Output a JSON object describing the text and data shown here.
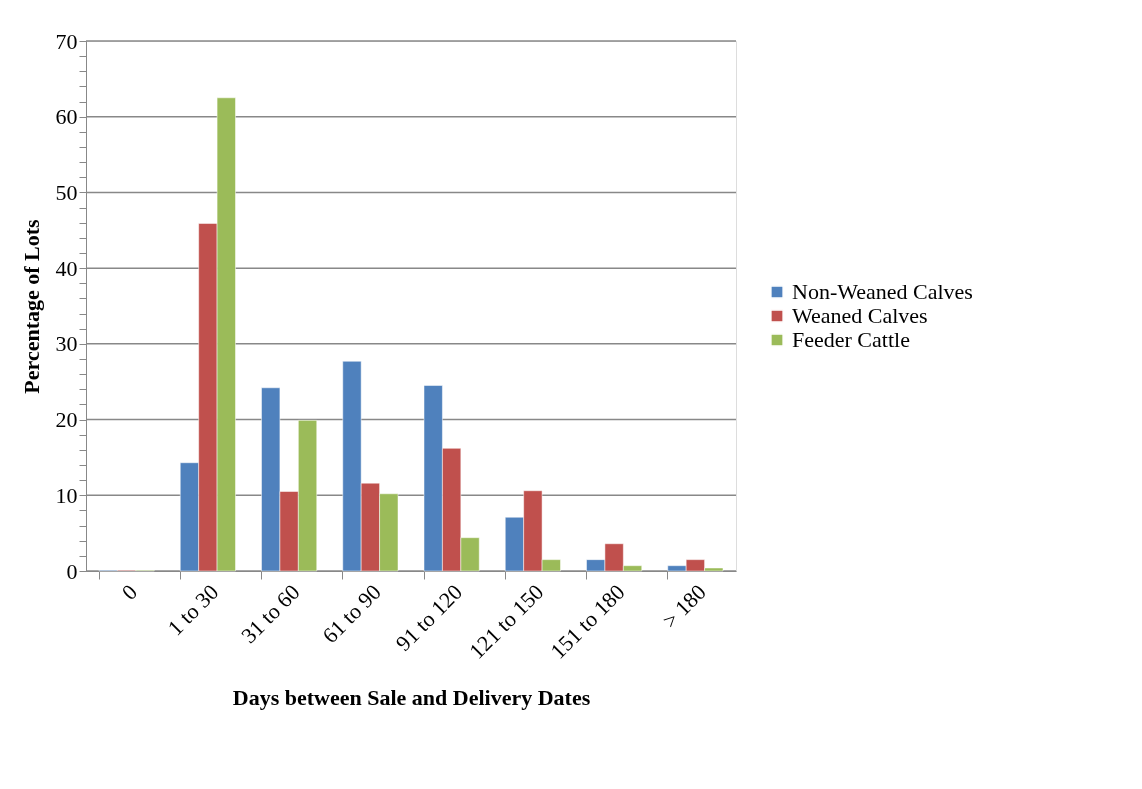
{
  "chart_data": {
    "type": "bar",
    "xlabel": "Days between Sale and Delivery Dates",
    "ylabel": "Percentage of Lots",
    "categories": [
      "0",
      "1 to 30",
      "31 to 60",
      "61 to 90",
      "91 to 120",
      "121 to 150",
      "151 to 180",
      "> 180"
    ],
    "series": [
      {
        "name": "Non-Weaned Calves",
        "color": "#4f81bd",
        "values": [
          0.1,
          14.3,
          24.2,
          27.7,
          24.5,
          7.1,
          1.5,
          0.7
        ]
      },
      {
        "name": "Weaned Calves",
        "color": "#c0504d",
        "values": [
          0.1,
          45.9,
          10.5,
          11.6,
          16.2,
          10.6,
          3.6,
          1.5
        ]
      },
      {
        "name": "Feeder Cattle",
        "color": "#9bbb59",
        "values": [
          0.1,
          62.5,
          19.9,
          10.2,
          4.4,
          1.5,
          0.7,
          0.4
        ]
      }
    ],
    "ylim": [
      0,
      70
    ],
    "yticks": [
      0,
      {
        "value": 2,
        "label": null
      },
      {
        "value": 4,
        "label": null
      },
      {
        "value": 6,
        "label": null
      },
      {
        "value": 8,
        "label": null
      },
      10,
      {
        "value": 12,
        "label": null
      },
      {
        "value": 14,
        "label": null
      },
      {
        "value": 16,
        "label": null
      },
      {
        "value": 18,
        "label": null
      },
      20,
      {
        "value": 22,
        "label": null
      },
      {
        "value": 24,
        "label": null
      },
      {
        "value": 26,
        "label": null
      },
      {
        "value": 28,
        "label": null
      },
      30,
      {
        "value": 32,
        "label": null
      },
      {
        "value": 34,
        "label": null
      },
      {
        "value": 36,
        "label": null
      },
      {
        "value": 38,
        "label": null
      },
      40,
      {
        "value": 42,
        "label": null
      },
      {
        "value": 44,
        "label": null
      },
      {
        "value": 46,
        "label": null
      },
      {
        "value": 48,
        "label": null
      },
      50,
      {
        "value": 52,
        "label": null
      },
      {
        "value": 54,
        "label": null
      },
      {
        "value": 56,
        "label": null
      },
      {
        "value": 58,
        "label": null
      },
      60,
      {
        "value": 62,
        "label": null
      },
      {
        "value": 64,
        "label": null
      },
      {
        "value": 66,
        "label": null
      },
      {
        "value": 68,
        "label": null
      },
      70
    ],
    "grid": "y",
    "legend": "right"
  }
}
